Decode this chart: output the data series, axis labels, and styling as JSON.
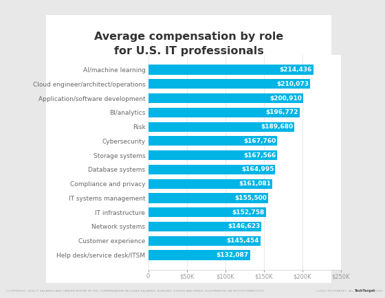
{
  "title": "Average compensation by role\nfor U.S. IT professionals",
  "categories": [
    "AI/machine learning",
    "Cloud engineer/architect/operations",
    "Application/software development",
    "BI/analytics",
    "Risk",
    "Cybersecurity",
    "Storage systems",
    "Database systems",
    "Compliance and privacy",
    "IT systems management",
    "IT infrastructure",
    "Network systems",
    "Customer experience",
    "Help desk/service desk/ITSM"
  ],
  "values": [
    214436,
    210073,
    200910,
    196772,
    189680,
    167760,
    167566,
    164995,
    161081,
    155500,
    152758,
    146623,
    145454,
    132087
  ],
  "labels": [
    "$214,436",
    "$210,073",
    "$200,910",
    "$196,772",
    "$189,680",
    "$167,760",
    "$167,566",
    "$164,995",
    "$161,081",
    "$155,500",
    "$152,758",
    "$146,623",
    "$145,454",
    "$132,087"
  ],
  "bar_color": "#00b4e6",
  "label_color": "#ffffff",
  "outer_bg": "#e8e8e8",
  "card_bg": "#ffffff",
  "title_color": "#333333",
  "tick_label_color": "#666666",
  "xlim": [
    0,
    250000
  ],
  "xticks": [
    0,
    50000,
    100000,
    150000,
    200000,
    250000
  ],
  "xtick_labels": [
    "0",
    "$50K",
    "$100K",
    "$150K",
    "$200K",
    "$250K"
  ],
  "title_fontsize": 11.5,
  "label_fontsize": 6.5,
  "tick_fontsize": 6,
  "ylabel_fontsize": 6.5,
  "bar_height": 0.68
}
